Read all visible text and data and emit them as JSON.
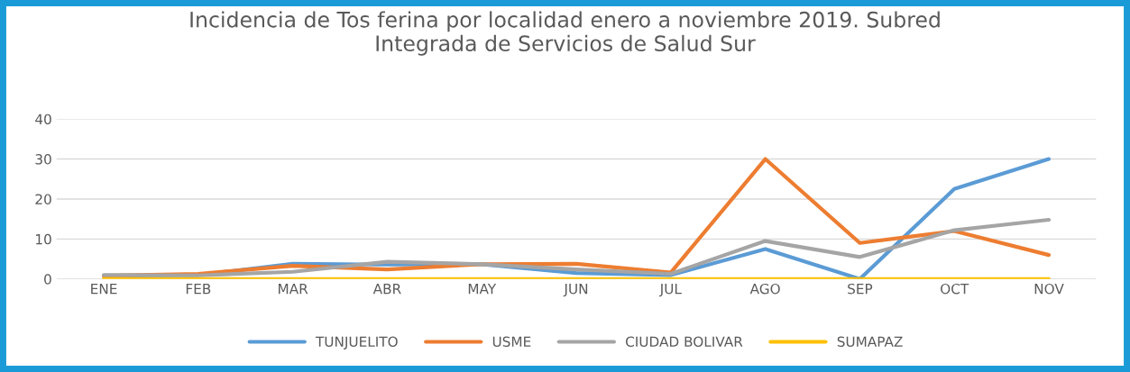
{
  "chart_data": {
    "type": "line",
    "title": "Incidencia de Tos ferina por localidad enero a noviembre 2019. Subred\nIntegrada de Servicios de Salud Sur",
    "categories": [
      "ENE",
      "FEB",
      "MAR",
      "ABR",
      "MAY",
      "JUN",
      "JUL",
      "AGO",
      "SEP",
      "OCT",
      "NOV"
    ],
    "series": [
      {
        "name": "TUNJUELITO",
        "color": "#5b9bd5",
        "values": [
          0.8,
          1,
          3.8,
          3.6,
          3.7,
          1.5,
          1,
          7.5,
          0,
          22.5,
          30
        ]
      },
      {
        "name": "USME",
        "color": "#ed7d31",
        "values": [
          0.8,
          1.3,
          3.3,
          2.4,
          3.7,
          3.8,
          1.6,
          30,
          9,
          12,
          6
        ]
      },
      {
        "name": "CIUDAD BOLIVAR",
        "color": "#a5a5a5",
        "values": [
          1,
          0.9,
          1.8,
          4.3,
          3.7,
          2.4,
          1.3,
          9.5,
          5.5,
          12.2,
          14.8
        ]
      },
      {
        "name": "SUMAPAZ",
        "color": "#ffc000",
        "values": [
          0,
          0,
          0,
          0,
          0,
          0,
          0,
          0,
          0,
          0,
          0
        ]
      }
    ],
    "ylim": [
      0,
      40
    ],
    "yticks": [
      0,
      10,
      20,
      30,
      40
    ],
    "grid": "y",
    "legend": "bottom",
    "marker": "none",
    "line_style": "solid"
  }
}
